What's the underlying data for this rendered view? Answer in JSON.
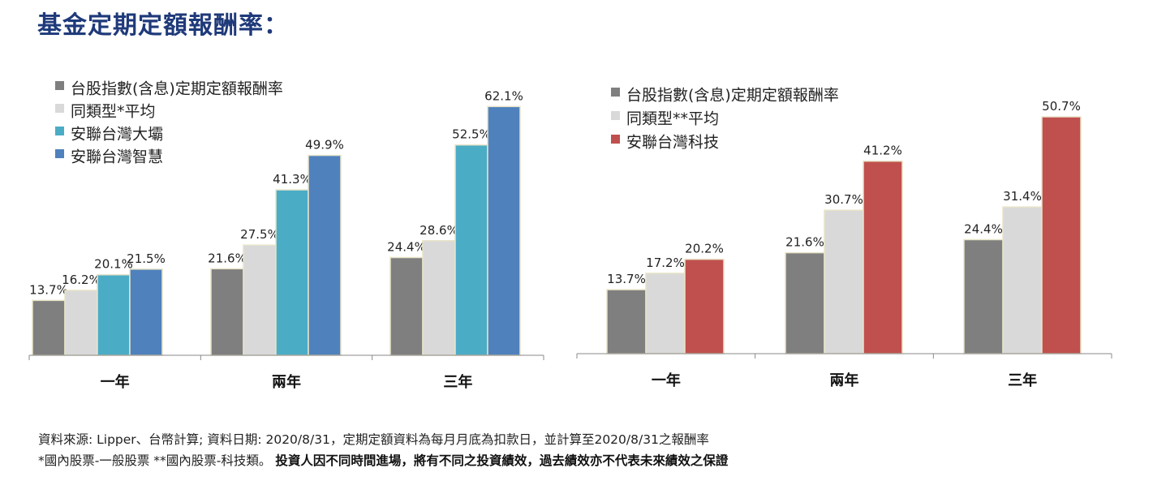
{
  "title": "基金定期定額報酬率：",
  "footnote": {
    "line1": "資料來源: Lipper、台幣計算; 資料日期: 2020/8/31，定期定額資料為每月月底為扣款日，並計算至2020/8/31之報酬率",
    "line2_regular": "*國內股票-一般股票  **國內股票-科技類。",
    "line2_bold": "投資人因不同時間進場，將有不同之投資績效，過去績效亦不代表未來績效之保證"
  },
  "chart_data": [
    {
      "type": "bar",
      "categories": [
        "一年",
        "兩年",
        "三年"
      ],
      "series": [
        {
          "name": "台股指數(含息)定期定額報酬率",
          "color": "#7f7f7f",
          "values": [
            13.7,
            21.6,
            24.4
          ],
          "labels": [
            "13.7%",
            "21.6%",
            "24.4%"
          ]
        },
        {
          "name": "同類型*平均",
          "color": "#d9d9d9",
          "values": [
            16.2,
            27.5,
            28.6
          ],
          "labels": [
            "16.2%",
            "27.5%",
            "28.6%"
          ]
        },
        {
          "name": "安聯台灣大壩",
          "color": "#4bacc6",
          "values": [
            20.1,
            41.3,
            52.5
          ],
          "labels": [
            "20.1%",
            "41.3%",
            "52.5%"
          ]
        },
        {
          "name": "安聯台灣智慧",
          "color": "#4f81bd",
          "values": [
            21.5,
            49.9,
            62.1
          ],
          "labels": [
            "21.5%",
            "49.9%",
            "62.1%"
          ]
        }
      ],
      "ylim": [
        0,
        65
      ],
      "legend": "top-left"
    },
    {
      "type": "bar",
      "categories": [
        "一年",
        "兩年",
        "三年"
      ],
      "series": [
        {
          "name": "台股指數(含息)定期定額報酬率",
          "color": "#7f7f7f",
          "values": [
            13.7,
            21.6,
            24.4
          ],
          "labels": [
            "13.7%",
            "21.6%",
            "24.4%"
          ]
        },
        {
          "name": "同類型**平均",
          "color": "#d9d9d9",
          "values": [
            17.2,
            30.7,
            31.4
          ],
          "labels": [
            "17.2%",
            "30.7%",
            "31.4%"
          ]
        },
        {
          "name": "安聯台灣科技",
          "color": "#c0504d",
          "values": [
            20.2,
            41.2,
            50.7
          ],
          "labels": [
            "20.2%",
            "41.2%",
            "50.7%"
          ]
        }
      ],
      "ylim": [
        0,
        54
      ],
      "legend": "top-left"
    }
  ]
}
